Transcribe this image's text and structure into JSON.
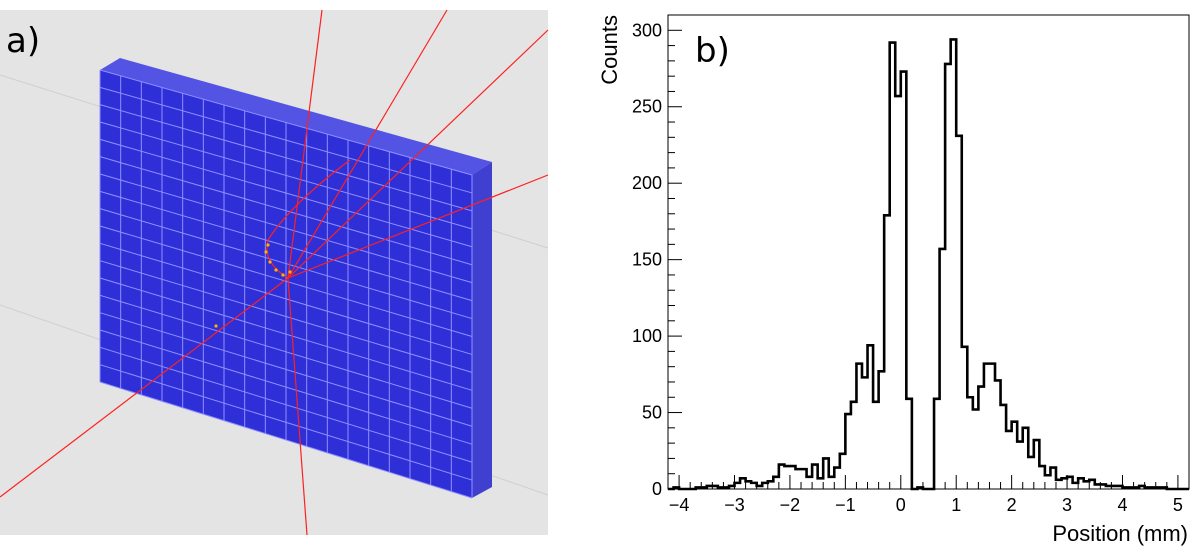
{
  "panel_a": {
    "label": "a)",
    "colors": {
      "background": "#e4e4e4",
      "detector": "#2f2fd8",
      "grid": "#8f8fff",
      "tracks": "#ff2020",
      "hits": "#ffb000"
    }
  },
  "chart_data": {
    "type": "histogram",
    "panel_label": "b)",
    "xlabel": "Position (mm)",
    "ylabel": "Counts",
    "xlim": [
      -4.2,
      5.2
    ],
    "ylim": [
      0,
      310
    ],
    "x_ticks": [
      -4,
      -3,
      -2,
      -1,
      0,
      1,
      2,
      3,
      4,
      5
    ],
    "y_ticks": [
      0,
      50,
      100,
      150,
      200,
      250,
      300
    ],
    "bin_start": -4.2,
    "bin_width": 0.1,
    "values": [
      0,
      1,
      0,
      0,
      0,
      1,
      1,
      2,
      2,
      1,
      1,
      2,
      4,
      7,
      5,
      4,
      2,
      4,
      5,
      8,
      16,
      15,
      15,
      13,
      13,
      8,
      16,
      7,
      20,
      8,
      14,
      23,
      49,
      57,
      82,
      73,
      94,
      57,
      77,
      179,
      292,
      257,
      273,
      59,
      0,
      1,
      0,
      0,
      59,
      157,
      278,
      294,
      231,
      93,
      60,
      52,
      67,
      82,
      82,
      71,
      55,
      38,
      44,
      31,
      40,
      21,
      32,
      15,
      9,
      14,
      6,
      7,
      8,
      4,
      7,
      5,
      6,
      3,
      3,
      2,
      2,
      2,
      1,
      1,
      1,
      2,
      1,
      1,
      1,
      1,
      0,
      0,
      0,
      0
    ],
    "grid": false,
    "colors": {
      "line": "#000000"
    }
  }
}
